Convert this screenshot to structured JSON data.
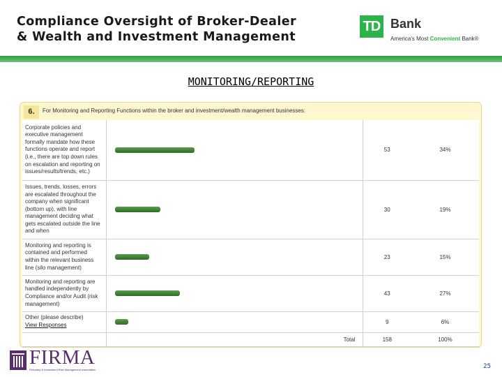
{
  "header": {
    "title_line1": "Compliance Oversight of Broker-Dealer",
    "title_line2": "& Wealth and Investment Management"
  },
  "brand": {
    "logo_text": "TD",
    "name": "Bank",
    "tagline_pre": "America's Most ",
    "tagline_highlight": "Convenient",
    "tagline_post": " Bank®",
    "accent_color": "#2db34a"
  },
  "section": {
    "title": "MONITORING/REPORTING"
  },
  "question": {
    "number": "6.",
    "text": "For Monitoring and Reporting Functions within the broker and investment/wealth management businesses:"
  },
  "chart_data": {
    "type": "bar",
    "orientation": "horizontal",
    "categories": [
      "Corporate policies and executive management formally mandate how these functions operate and report (i.e., there are top down rules on escalation and reporting on issues/results/trends, etc.)",
      "Issues, trends, losses, errors are escalated throughout the company when significant (bottom up), with line management deciding what gets escalated outside the line and when",
      "Monitoring and reporting is contained and performed within the relevant business line (silo management)",
      "Monitoring and reporting are handled independently by Compliance and/or Audit (risk management)",
      "Other (please describe)"
    ],
    "values": [
      53,
      30,
      23,
      43,
      9
    ],
    "percents": [
      "34%",
      "19%",
      "15%",
      "27%",
      "6%"
    ],
    "max": 158,
    "other_link": "View Responses",
    "total_label": "Total",
    "total_count": "158",
    "total_percent": "100%",
    "bar_color": "#3f7f33"
  },
  "footer": {
    "org_name": "FIRMA",
    "org_subtitle": "Fiduciary & Investment Risk Management Association",
    "page_number": "25"
  }
}
